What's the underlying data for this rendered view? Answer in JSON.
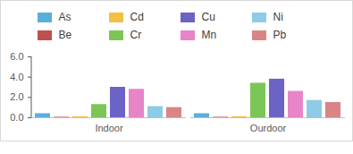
{
  "chart_data": {
    "type": "bar",
    "categories": [
      "Indoor",
      "Ourdoor"
    ],
    "series": [
      {
        "name": "As",
        "color": "#5aaedc",
        "values": [
          0.4,
          0.4
        ]
      },
      {
        "name": "Be",
        "color": "#c0504d",
        "values": [
          0.05,
          0.05
        ]
      },
      {
        "name": "Cd",
        "color": "#f3c042",
        "values": [
          0.1,
          0.1
        ]
      },
      {
        "name": "Cr",
        "color": "#7cc657",
        "values": [
          1.3,
          3.4
        ]
      },
      {
        "name": "Cu",
        "color": "#6b63c6",
        "values": [
          3.0,
          3.8
        ]
      },
      {
        "name": "Mn",
        "color": "#e884c8",
        "values": [
          2.8,
          2.6
        ]
      },
      {
        "name": "Ni",
        "color": "#8ecbe6",
        "values": [
          1.1,
          1.7
        ]
      },
      {
        "name": "Pb",
        "color": "#d98585",
        "values": [
          1.0,
          1.5
        ]
      }
    ],
    "ylim": [
      0,
      6
    ],
    "yticks": [
      0,
      2,
      4,
      6
    ],
    "grid": false,
    "legend": "top"
  }
}
